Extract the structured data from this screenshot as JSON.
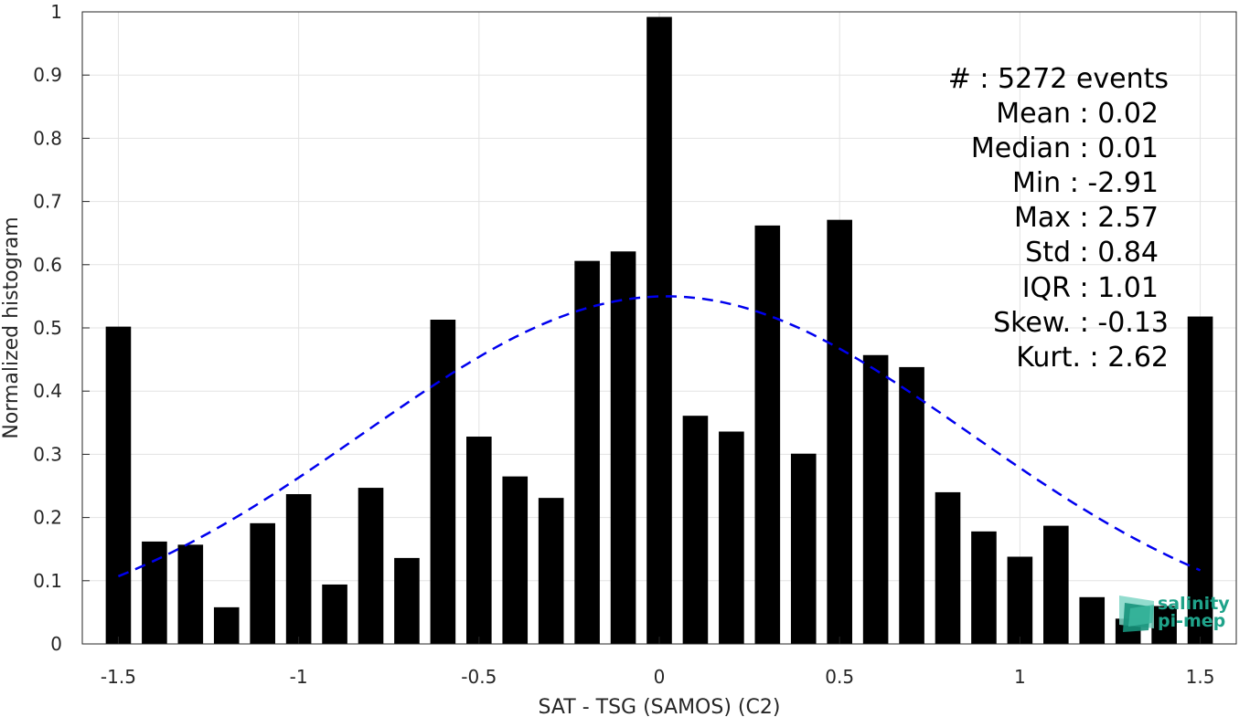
{
  "chart_data": {
    "type": "bar",
    "xlabel": "SAT - TSG (SAMOS) (C2)",
    "ylabel": "Normalized histogram",
    "xlim": [
      -1.6,
      1.6
    ],
    "ylim": [
      0,
      1
    ],
    "grid": true,
    "x_ticks": [
      -1.5,
      -1,
      -0.5,
      0,
      0.5,
      1,
      1.5
    ],
    "x_tick_labels": [
      "-1.5",
      "-1",
      "-0.5",
      "0",
      "0.5",
      "1",
      "1.5"
    ],
    "y_ticks": [
      0,
      0.1,
      0.2,
      0.3,
      0.4,
      0.5,
      0.6,
      0.7,
      0.8,
      0.9,
      1
    ],
    "y_tick_labels": [
      "0",
      "0.1",
      "0.2",
      "0.3",
      "0.4",
      "0.5",
      "0.6",
      "0.7",
      "0.8",
      "0.9",
      "1"
    ],
    "bar_width": 0.07,
    "bar_color": "#000000",
    "series": [
      {
        "x": [
          -1.5,
          -1.4,
          -1.3,
          -1.2,
          -1.1,
          -1.0,
          -0.9,
          -0.8,
          -0.7,
          -0.6,
          -0.5,
          -0.4,
          -0.3,
          -0.2,
          -0.1,
          0.0,
          0.1,
          0.2,
          0.3,
          0.4,
          0.5,
          0.6,
          0.7,
          0.8,
          0.9,
          1.0,
          1.1,
          1.2,
          1.3,
          1.4,
          1.5
        ],
        "values": [
          0.502,
          0.162,
          0.157,
          0.058,
          0.191,
          0.237,
          0.094,
          0.247,
          0.136,
          0.513,
          0.328,
          0.265,
          0.231,
          0.606,
          0.621,
          0.992,
          0.361,
          0.336,
          0.662,
          0.301,
          0.671,
          0.457,
          0.438,
          0.24,
          0.178,
          0.138,
          0.187,
          0.074,
          0.04,
          0.06,
          0.518
        ]
      }
    ],
    "fit_curve": {
      "style": "dashed",
      "color": "#0000ee",
      "distribution": "normal",
      "mean": 0.02,
      "std": 0.84,
      "peak": 0.55,
      "x_range": [
        -1.5,
        1.5
      ]
    }
  },
  "stats": [
    {
      "label": "#  : 5272 events",
      "anchor": "end"
    },
    {
      "label": "Mean : 0.02",
      "anchor": "end"
    },
    {
      "label": "Median : 0.01",
      "anchor": "end"
    },
    {
      "label": "Min : -2.91",
      "anchor": "end"
    },
    {
      "label": "Max : 2.57",
      "anchor": "end"
    },
    {
      "label": "Std : 0.84",
      "anchor": "end"
    },
    {
      "label": "IQR : 1.01",
      "anchor": "end"
    },
    {
      "label": "Skew. : -0.13",
      "anchor": "end"
    },
    {
      "label": "Kurt. : 2.62",
      "anchor": "end"
    }
  ],
  "logo": {
    "line1": "salinity",
    "line2": "pi-mep",
    "icon_name": "salinity-pimep-logo-icon",
    "color_light": "#7fd6c5",
    "color_dark": "#16927b"
  }
}
